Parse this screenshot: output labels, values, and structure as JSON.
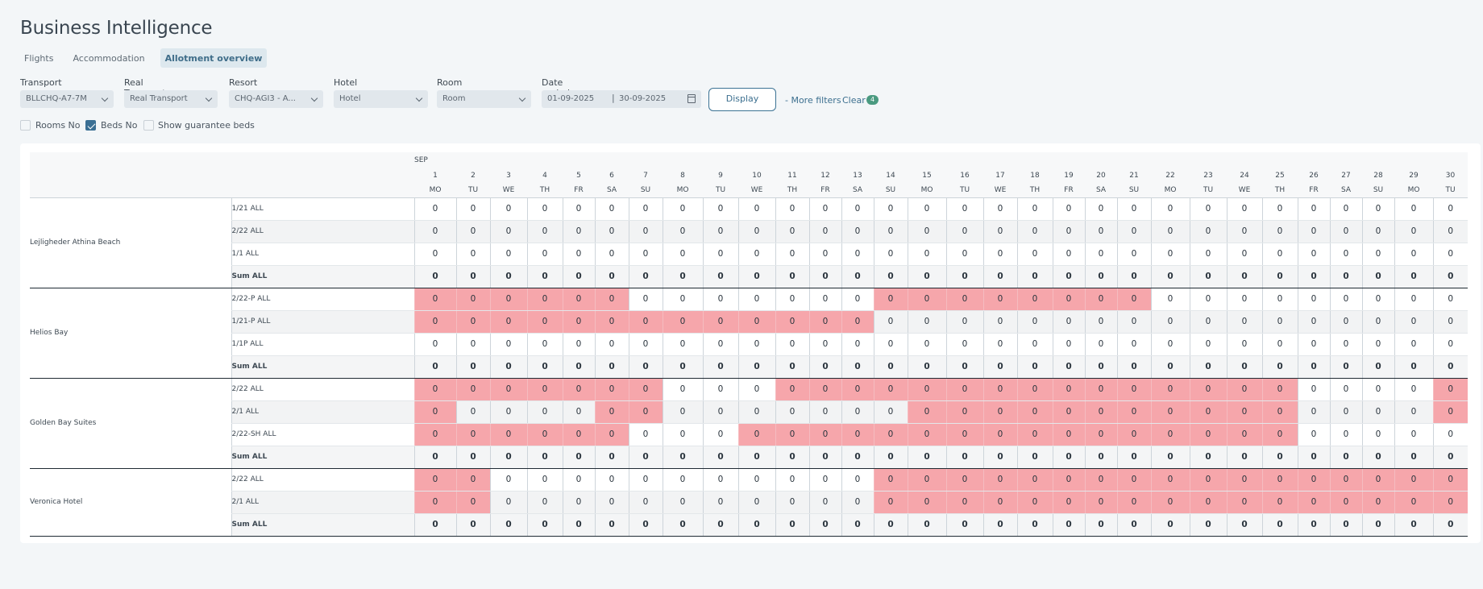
{
  "header": {
    "title": "Business Intelligence"
  },
  "tabs": [
    {
      "label": "Flights",
      "active": false
    },
    {
      "label": "Accommodation",
      "active": false
    },
    {
      "label": "Allotment overview",
      "active": true
    }
  ],
  "filters": {
    "transport": {
      "label": "Transport",
      "value": "BLLCHQ-A7-7M"
    },
    "real_transport": {
      "label": "Real Transport",
      "value": "Real Transport"
    },
    "resort": {
      "label": "Resort",
      "value": "CHQ-AGI3 - A..."
    },
    "hotel": {
      "label": "Hotel",
      "value": "Hotel"
    },
    "room": {
      "label": "Room",
      "value": "Room"
    },
    "date_period": {
      "label": "Date period",
      "from": "01-09-2025",
      "separator": "|",
      "to": "30-09-2025"
    },
    "display_label": "Display",
    "more_filters_label": "- More filters",
    "clear_label": "Clear",
    "clear_count": "4"
  },
  "checkboxes": [
    {
      "label": "Rooms No",
      "checked": false
    },
    {
      "label": "Beds No",
      "checked": true
    },
    {
      "label": "Show guarantee beds",
      "checked": false
    }
  ],
  "colors": {
    "accent": "#3c7394",
    "highlight_red": "#f6a6ab",
    "badge_green": "#4a9a80"
  },
  "table": {
    "month": "SEP",
    "days": [
      "1",
      "2",
      "3",
      "4",
      "5",
      "6",
      "7",
      "8",
      "9",
      "10",
      "11",
      "12",
      "13",
      "14",
      "15",
      "16",
      "17",
      "18",
      "19",
      "20",
      "21",
      "22",
      "23",
      "24",
      "25",
      "26",
      "27",
      "28",
      "29",
      "30"
    ],
    "weekdays": [
      "MO",
      "TU",
      "WE",
      "TH",
      "FR",
      "SA",
      "SU",
      "MO",
      "TU",
      "WE",
      "TH",
      "FR",
      "SA",
      "SU",
      "MO",
      "TU",
      "WE",
      "TH",
      "FR",
      "SA",
      "SU",
      "MO",
      "TU",
      "WE",
      "TH",
      "FR",
      "SA",
      "SU",
      "MO",
      "TU"
    ],
    "hotels": [
      {
        "name": "Lejligheder Athina Beach",
        "rows": [
          {
            "room": "1/21 ALL",
            "values": [
              "0",
              "0",
              "0",
              "0",
              "0",
              "0",
              "0",
              "0",
              "0",
              "0",
              "0",
              "0",
              "0",
              "0",
              "0",
              "0",
              "0",
              "0",
              "0",
              "0",
              "0",
              "0",
              "0",
              "0",
              "0",
              "0",
              "0",
              "0",
              "0",
              "0"
            ],
            "red": []
          },
          {
            "room": "2/22 ALL",
            "values": [
              "0",
              "0",
              "0",
              "0",
              "0",
              "0",
              "0",
              "0",
              "0",
              "0",
              "0",
              "0",
              "0",
              "0",
              "0",
              "0",
              "0",
              "0",
              "0",
              "0",
              "0",
              "0",
              "0",
              "0",
              "0",
              "0",
              "0",
              "0",
              "0",
              "0"
            ],
            "red": []
          },
          {
            "room": "1/1 ALL",
            "values": [
              "0",
              "0",
              "0",
              "0",
              "0",
              "0",
              "0",
              "0",
              "0",
              "0",
              "0",
              "0",
              "0",
              "0",
              "0",
              "0",
              "0",
              "0",
              "0",
              "0",
              "0",
              "0",
              "0",
              "0",
              "0",
              "0",
              "0",
              "0",
              "0",
              "0"
            ],
            "red": []
          }
        ],
        "sum": {
          "room": "Sum ALL",
          "values": [
            "0",
            "0",
            "0",
            "0",
            "0",
            "0",
            "0",
            "0",
            "0",
            "0",
            "0",
            "0",
            "0",
            "0",
            "0",
            "0",
            "0",
            "0",
            "0",
            "0",
            "0",
            "0",
            "0",
            "0",
            "0",
            "0",
            "0",
            "0",
            "0",
            "0"
          ]
        }
      },
      {
        "name": "Helios Bay",
        "rows": [
          {
            "room": "2/22-P ALL",
            "values": [
              "0",
              "0",
              "0",
              "0",
              "0",
              "0",
              "0",
              "0",
              "0",
              "0",
              "0",
              "0",
              "0",
              "0",
              "0",
              "0",
              "0",
              "0",
              "0",
              "0",
              "0",
              "0",
              "0",
              "0",
              "0",
              "0",
              "0",
              "0",
              "0",
              "0"
            ],
            "red": [
              1,
              2,
              3,
              4,
              5,
              6,
              14,
              15,
              16,
              17,
              18,
              19,
              20,
              21
            ]
          },
          {
            "room": "1/21-P ALL",
            "values": [
              "0",
              "0",
              "0",
              "0",
              "0",
              "0",
              "0",
              "0",
              "0",
              "0",
              "0",
              "0",
              "0",
              "0",
              "0",
              "0",
              "0",
              "0",
              "0",
              "0",
              "0",
              "0",
              "0",
              "0",
              "0",
              "0",
              "0",
              "0",
              "0",
              "0"
            ],
            "red": [
              1,
              2,
              3,
              4,
              5,
              6,
              7,
              8,
              9,
              10,
              11,
              12,
              13
            ]
          },
          {
            "room": "1/1P ALL",
            "values": [
              "0",
              "0",
              "0",
              "0",
              "0",
              "0",
              "0",
              "0",
              "0",
              "0",
              "0",
              "0",
              "0",
              "0",
              "0",
              "0",
              "0",
              "0",
              "0",
              "0",
              "0",
              "0",
              "0",
              "0",
              "0",
              "0",
              "0",
              "0",
              "0",
              "0"
            ],
            "red": []
          }
        ],
        "sum": {
          "room": "Sum ALL",
          "values": [
            "0",
            "0",
            "0",
            "0",
            "0",
            "0",
            "0",
            "0",
            "0",
            "0",
            "0",
            "0",
            "0",
            "0",
            "0",
            "0",
            "0",
            "0",
            "0",
            "0",
            "0",
            "0",
            "0",
            "0",
            "0",
            "0",
            "0",
            "0",
            "0",
            "0"
          ]
        }
      },
      {
        "name": "Golden Bay Suites",
        "rows": [
          {
            "room": "2/22 ALL",
            "values": [
              "0",
              "0",
              "0",
              "0",
              "0",
              "0",
              "0",
              "0",
              "0",
              "0",
              "0",
              "0",
              "0",
              "0",
              "0",
              "0",
              "0",
              "0",
              "0",
              "0",
              "0",
              "0",
              "0",
              "0",
              "0",
              "0",
              "0",
              "0",
              "0",
              "0"
            ],
            "red": [
              1,
              2,
              3,
              4,
              5,
              6,
              7,
              11,
              12,
              13,
              14,
              15,
              16,
              17,
              18,
              19,
              20,
              21,
              22,
              23,
              24,
              25,
              30
            ]
          },
          {
            "room": "2/1 ALL",
            "values": [
              "0",
              "0",
              "0",
              "0",
              "0",
              "0",
              "0",
              "0",
              "0",
              "0",
              "0",
              "0",
              "0",
              "0",
              "0",
              "0",
              "0",
              "0",
              "0",
              "0",
              "0",
              "0",
              "0",
              "0",
              "0",
              "0",
              "0",
              "0",
              "0",
              "0"
            ],
            "red": [
              1,
              6,
              7,
              15,
              16,
              17,
              18,
              19,
              20,
              21,
              22,
              23,
              24,
              25,
              30
            ]
          },
          {
            "room": "2/22-SH ALL",
            "values": [
              "0",
              "0",
              "0",
              "0",
              "0",
              "0",
              "0",
              "0",
              "0",
              "0",
              "0",
              "0",
              "0",
              "0",
              "0",
              "0",
              "0",
              "0",
              "0",
              "0",
              "0",
              "0",
              "0",
              "0",
              "0",
              "0",
              "0",
              "0",
              "0",
              "0"
            ],
            "red": [
              1,
              2,
              3,
              4,
              5,
              6,
              10,
              11,
              12,
              13,
              14,
              15,
              16,
              17,
              18,
              19,
              20,
              21,
              22,
              23,
              24,
              25
            ]
          }
        ],
        "sum": {
          "room": "Sum ALL",
          "values": [
            "0",
            "0",
            "0",
            "0",
            "0",
            "0",
            "0",
            "0",
            "0",
            "0",
            "0",
            "0",
            "0",
            "0",
            "0",
            "0",
            "0",
            "0",
            "0",
            "0",
            "0",
            "0",
            "0",
            "0",
            "0",
            "0",
            "0",
            "0",
            "0",
            "0"
          ]
        }
      },
      {
        "name": "Veronica Hotel",
        "rows": [
          {
            "room": "2/22 ALL",
            "values": [
              "0",
              "0",
              "0",
              "0",
              "0",
              "0",
              "0",
              "0",
              "0",
              "0",
              "0",
              "0",
              "0",
              "0",
              "0",
              "0",
              "0",
              "0",
              "0",
              "0",
              "0",
              "0",
              "0",
              "0",
              "0",
              "0",
              "0",
              "0",
              "0",
              "0"
            ],
            "red": [
              1,
              2,
              14,
              15,
              16,
              17,
              18,
              19,
              20,
              21,
              22,
              23,
              24,
              25,
              26,
              27,
              28,
              29,
              30
            ]
          },
          {
            "room": "2/1 ALL",
            "values": [
              "0",
              "0",
              "0",
              "0",
              "0",
              "0",
              "0",
              "0",
              "0",
              "0",
              "0",
              "0",
              "0",
              "0",
              "0",
              "0",
              "0",
              "0",
              "0",
              "0",
              "0",
              "0",
              "0",
              "0",
              "0",
              "0",
              "0",
              "0",
              "0",
              "0"
            ],
            "red": [
              1,
              2,
              14,
              15,
              16,
              17,
              18,
              19,
              20,
              21,
              22,
              23,
              24,
              25,
              26,
              27,
              28,
              29,
              30
            ]
          }
        ],
        "sum": {
          "room": "Sum ALL",
          "values": [
            "0",
            "0",
            "0",
            "0",
            "0",
            "0",
            "0",
            "0",
            "0",
            "0",
            "0",
            "0",
            "0",
            "0",
            "0",
            "0",
            "0",
            "0",
            "0",
            "0",
            "0",
            "0",
            "0",
            "0",
            "0",
            "0",
            "0",
            "0",
            "0",
            "0"
          ]
        }
      }
    ]
  }
}
